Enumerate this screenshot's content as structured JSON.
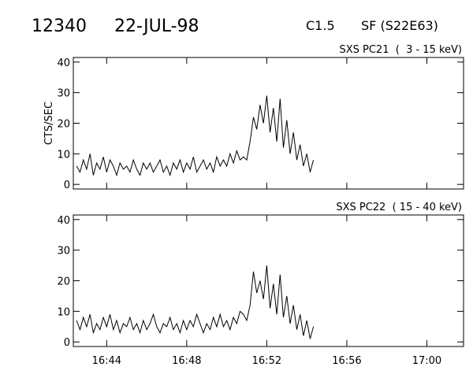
{
  "header": {
    "id": "12340",
    "date": "22-JUL-98",
    "class": "C1.5",
    "location": "SF (S22E63)"
  },
  "chart_data": [
    {
      "type": "line",
      "title": "SXS PC21  (  3 - 15 keV)",
      "y_label": "CTS/SEC",
      "color": "#000000",
      "show_xtick_labels": false,
      "x": [
        "16:42:30",
        "16:42:40",
        "16:42:50",
        "16:43:00",
        "16:43:10",
        "16:43:20",
        "16:43:30",
        "16:43:40",
        "16:43:50",
        "16:44:00",
        "16:44:10",
        "16:44:20",
        "16:44:30",
        "16:44:40",
        "16:44:50",
        "16:45:00",
        "16:45:10",
        "16:45:20",
        "16:45:30",
        "16:45:40",
        "16:45:50",
        "16:46:00",
        "16:46:10",
        "16:46:20",
        "16:46:30",
        "16:46:40",
        "16:46:50",
        "16:47:00",
        "16:47:10",
        "16:47:20",
        "16:47:30",
        "16:47:40",
        "16:47:50",
        "16:48:00",
        "16:48:10",
        "16:48:20",
        "16:48:30",
        "16:48:40",
        "16:48:50",
        "16:49:00",
        "16:49:10",
        "16:49:20",
        "16:49:30",
        "16:49:40",
        "16:49:50",
        "16:50:00",
        "16:50:10",
        "16:50:20",
        "16:50:30",
        "16:50:40",
        "16:50:50",
        "16:51:00",
        "16:51:10",
        "16:51:20",
        "16:51:30",
        "16:51:40",
        "16:51:50",
        "16:52:00",
        "16:52:10",
        "16:52:20",
        "16:52:30",
        "16:52:40",
        "16:52:50",
        "16:53:00",
        "16:53:10",
        "16:53:20",
        "16:53:30",
        "16:53:40",
        "16:53:50",
        "16:54:00",
        "16:54:10",
        "16:54:20"
      ],
      "values": [
        6,
        4,
        8,
        5,
        10,
        3,
        7,
        5,
        9,
        4,
        8,
        6,
        3,
        7,
        5,
        6,
        4,
        8,
        5,
        3,
        7,
        5,
        7,
        4,
        6,
        8,
        4,
        6,
        3,
        7,
        5,
        8,
        4,
        7,
        5,
        9,
        4,
        6,
        8,
        5,
        7,
        4,
        9,
        6,
        8,
        6,
        10,
        7,
        11,
        8,
        9,
        8,
        14,
        22,
        18,
        26,
        20,
        29,
        17,
        25,
        14,
        28,
        12,
        21,
        10,
        17,
        8,
        13,
        6,
        10,
        4,
        8
      ],
      "xlim": [
        "16:42:20",
        "17:01:50"
      ],
      "xticks": [
        "16:44",
        "16:48",
        "16:52",
        "16:56",
        "17:00"
      ],
      "ylim": [
        -1.5,
        41.5
      ],
      "yticks": [
        0,
        10,
        20,
        30,
        40
      ]
    },
    {
      "type": "line",
      "title": "SXS PC22  ( 15 - 40 keV)",
      "color": "#000000",
      "show_xtick_labels": true,
      "x": [
        "16:42:30",
        "16:42:40",
        "16:42:50",
        "16:43:00",
        "16:43:10",
        "16:43:20",
        "16:43:30",
        "16:43:40",
        "16:43:50",
        "16:44:00",
        "16:44:10",
        "16:44:20",
        "16:44:30",
        "16:44:40",
        "16:44:50",
        "16:45:00",
        "16:45:10",
        "16:45:20",
        "16:45:30",
        "16:45:40",
        "16:45:50",
        "16:46:00",
        "16:46:10",
        "16:46:20",
        "16:46:30",
        "16:46:40",
        "16:46:50",
        "16:47:00",
        "16:47:10",
        "16:47:20",
        "16:47:30",
        "16:47:40",
        "16:47:50",
        "16:48:00",
        "16:48:10",
        "16:48:20",
        "16:48:30",
        "16:48:40",
        "16:48:50",
        "16:49:00",
        "16:49:10",
        "16:49:20",
        "16:49:30",
        "16:49:40",
        "16:49:50",
        "16:50:00",
        "16:50:10",
        "16:50:20",
        "16:50:30",
        "16:50:40",
        "16:50:50",
        "16:51:00",
        "16:51:10",
        "16:51:20",
        "16:51:30",
        "16:51:40",
        "16:51:50",
        "16:52:00",
        "16:52:10",
        "16:52:20",
        "16:52:30",
        "16:52:40",
        "16:52:50",
        "16:53:00",
        "16:53:10",
        "16:53:20",
        "16:53:30",
        "16:53:40",
        "16:53:50",
        "16:54:00",
        "16:54:10",
        "16:54:20"
      ],
      "values": [
        7,
        4,
        8,
        5,
        9,
        3,
        6,
        4,
        8,
        5,
        9,
        4,
        7,
        3,
        6,
        5,
        8,
        4,
        6,
        3,
        7,
        4,
        6,
        9,
        5,
        3,
        6,
        5,
        8,
        4,
        6,
        3,
        7,
        4,
        7,
        5,
        9,
        6,
        3,
        6,
        4,
        8,
        5,
        9,
        5,
        7,
        4,
        8,
        6,
        10,
        9,
        7,
        12,
        23,
        16,
        20,
        14,
        25,
        11,
        19,
        9,
        22,
        8,
        15,
        6,
        12,
        4,
        9,
        2,
        7,
        1,
        5
      ],
      "xlim": [
        "16:42:20",
        "17:01:50"
      ],
      "xticks": [
        "16:44",
        "16:48",
        "16:52",
        "16:56",
        "17:00"
      ],
      "ylim": [
        -1.5,
        41.5
      ],
      "yticks": [
        0,
        10,
        20,
        30,
        40
      ]
    }
  ]
}
